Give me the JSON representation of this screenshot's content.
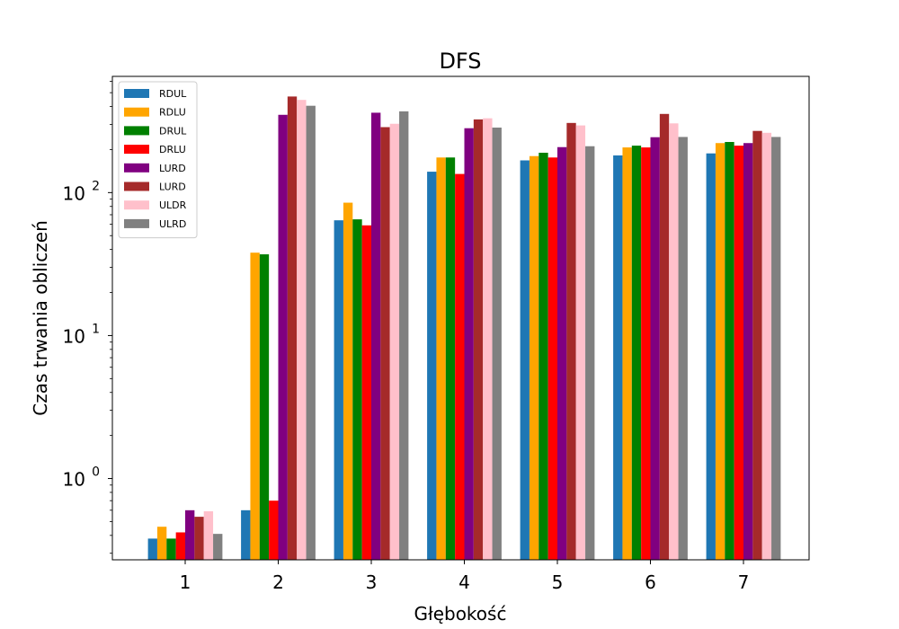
{
  "chart_data": {
    "type": "bar",
    "title": "DFS",
    "xlabel": "Głębokość",
    "ylabel": "Czas trwania obliczeń",
    "yscale": "log",
    "ylim": [
      0.27,
      650
    ],
    "legend_position": "top-left",
    "grid": false,
    "categories": [
      "1",
      "2",
      "3",
      "4",
      "5",
      "6",
      "7"
    ],
    "yticks": [
      {
        "base": "10",
        "exp": "0",
        "value": 1
      },
      {
        "base": "10",
        "exp": "1",
        "value": 10
      },
      {
        "base": "10",
        "exp": "2",
        "value": 100
      }
    ],
    "series": [
      {
        "name": "RDUL",
        "color": "#1f77b4",
        "values": [
          0.38,
          0.6,
          64,
          140,
          168,
          182,
          188
        ]
      },
      {
        "name": "RDLU",
        "color": "#ffa500",
        "values": [
          0.46,
          38,
          85,
          176,
          180,
          207,
          222
        ]
      },
      {
        "name": "DRUL",
        "color": "#008000",
        "values": [
          0.38,
          37,
          65,
          176,
          190,
          213,
          226
        ]
      },
      {
        "name": "DRLU",
        "color": "#ff0000",
        "values": [
          0.42,
          0.7,
          59,
          135,
          176,
          207,
          213
        ]
      },
      {
        "name": "LURD",
        "color": "#800080",
        "values": [
          0.6,
          350,
          362,
          282,
          208,
          244,
          222
        ]
      },
      {
        "name": "LURD",
        "color": "#a52a2a",
        "values": [
          0.54,
          470,
          287,
          325,
          307,
          355,
          270
        ]
      },
      {
        "name": "ULDR",
        "color": "#ffc0cb",
        "values": [
          0.59,
          445,
          303,
          331,
          295,
          305,
          262
        ]
      },
      {
        "name": "ULRD",
        "color": "#808080",
        "values": [
          0.41,
          405,
          370,
          285,
          211,
          245,
          245
        ]
      }
    ]
  }
}
